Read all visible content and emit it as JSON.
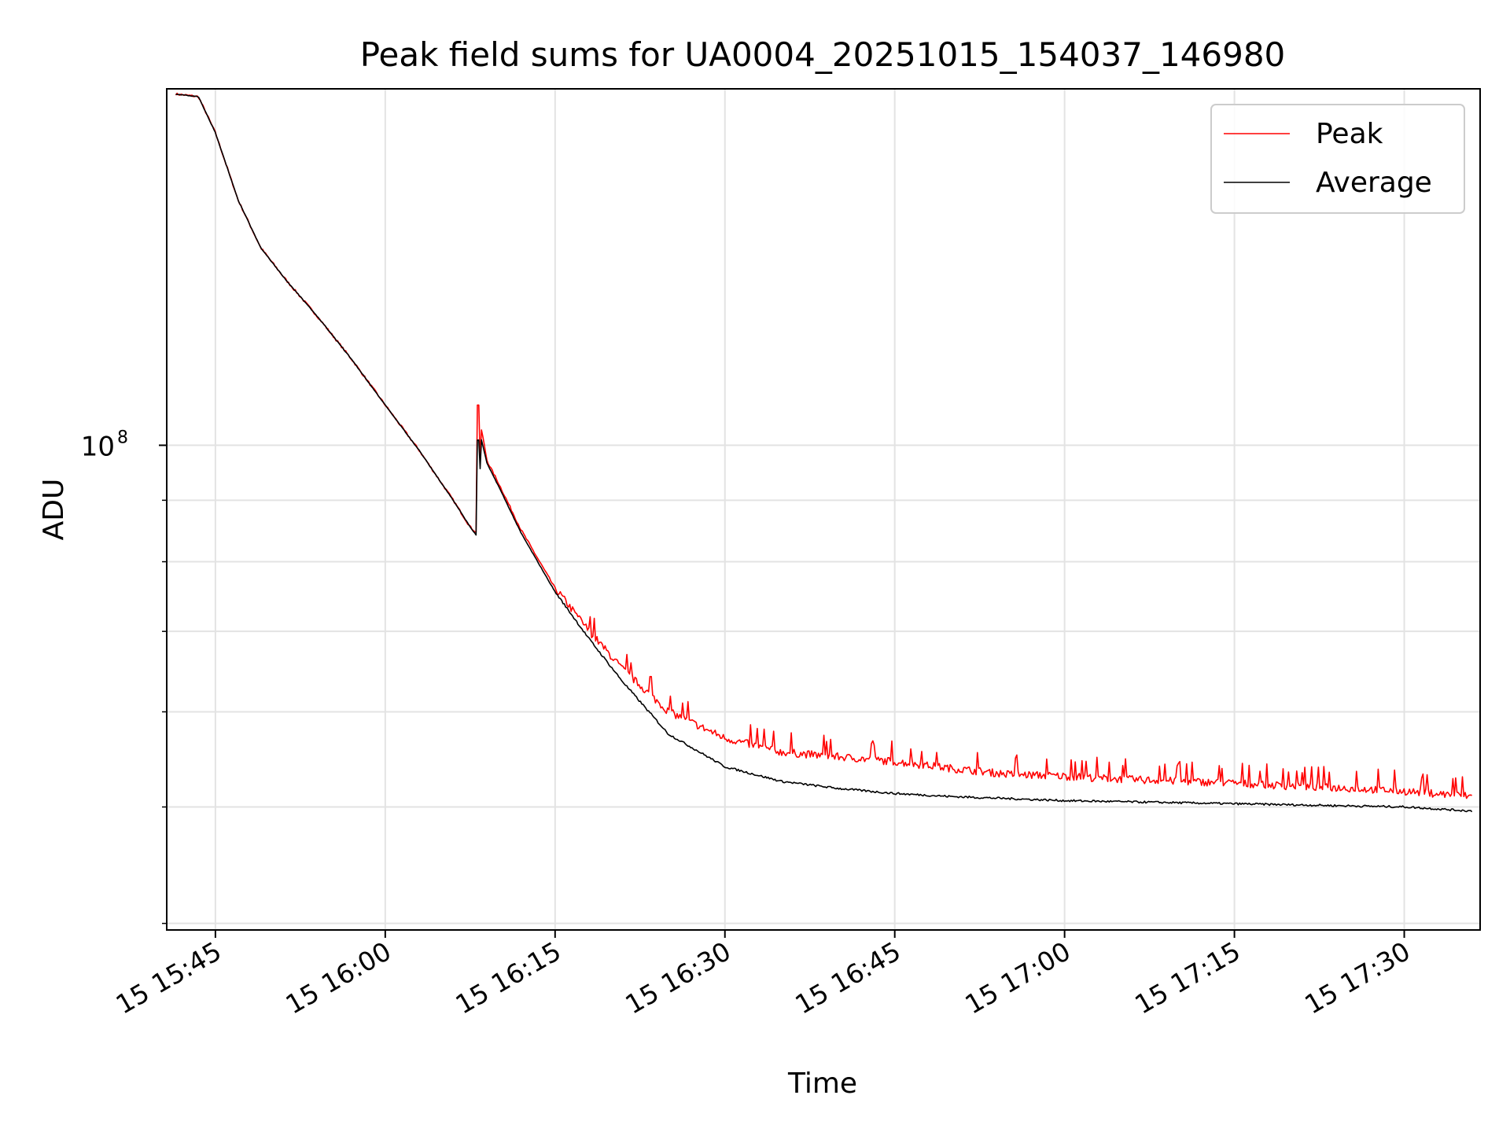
{
  "chart_data": {
    "type": "line",
    "title": "Peak field sums for UA0004_20251015_154037_146980",
    "xlabel": "Time",
    "ylabel": "ADU",
    "y_scale": "log",
    "ylim": [
      39500000,
      198000000
    ],
    "y_major_tick": {
      "value": 100000000,
      "label_base": "10",
      "label_exp": "8"
    },
    "y_minor_ticks": [
      40000000,
      50000000,
      60000000,
      70000000,
      80000000,
      90000000,
      200000000
    ],
    "xlim_minutes": [
      -4.3,
      111.7
    ],
    "x_tick_minutes": [
      0,
      15,
      30,
      45,
      60,
      75,
      90,
      105
    ],
    "x_tick_labels": [
      "15 15:45",
      "15 16:00",
      "15 16:15",
      "15 16:30",
      "15 16:45",
      "15 17:00",
      "15 17:15",
      "15 17:30"
    ],
    "x_origin_label": "15 15:45",
    "grid": true,
    "legend_position": "top-right",
    "series": [
      {
        "name": "Peak",
        "color": "#ff0000",
        "anchors_minutes": [
          -3.5,
          -1.5,
          0,
          2,
          4,
          6.3,
          9,
          12,
          15,
          18,
          21,
          22.5,
          23.1,
          23.5,
          24,
          25,
          27,
          30,
          33,
          36,
          40,
          45,
          50,
          55,
          60,
          65,
          70,
          75,
          80,
          85,
          90,
          95,
          100,
          105,
          111
        ],
        "anchors_values": [
          196000000,
          195000000,
          182000000,
          160000000,
          146000000,
          137000000,
          128000000,
          118000000,
          108000000,
          99000000,
          90000000,
          85500000,
          84500000,
          103000000,
          97000000,
          93000000,
          85000000,
          76000000,
          70000000,
          65000000,
          60000000,
          57000000,
          55500000,
          55000000,
          54500000,
          53800000,
          53200000,
          53000000,
          52700000,
          52500000,
          52300000,
          52000000,
          51800000,
          51500000,
          51000000
        ],
        "spike": {
          "minute": 23.2,
          "value": 108000000
        },
        "noise_amplitude_fraction": 0.015
      },
      {
        "name": "Average",
        "color": "#000000",
        "anchors_minutes": [
          -3.5,
          -1.5,
          0,
          2,
          4,
          6.3,
          9,
          12,
          15,
          18,
          21,
          22.5,
          23.1,
          23.5,
          24,
          25,
          27,
          30,
          33,
          36,
          40,
          45,
          50,
          55,
          60,
          65,
          70,
          75,
          80,
          85,
          90,
          95,
          100,
          105,
          111
        ],
        "anchors_values": [
          196000000,
          195000000,
          182000000,
          160000000,
          146000000,
          137000000,
          128000000,
          118000000,
          108000000,
          99000000,
          90000000,
          85500000,
          84000000,
          101000000,
          96500000,
          92500000,
          84500000,
          75500000,
          69000000,
          63500000,
          57500000,
          54000000,
          52500000,
          51800000,
          51300000,
          51000000,
          50800000,
          50600000,
          50500000,
          50400000,
          50300000,
          50200000,
          50100000,
          50000000,
          49600000
        ],
        "spike": {
          "minute": 23.2,
          "value": 101000000
        },
        "noise_amplitude_fraction": 0.004
      }
    ]
  }
}
